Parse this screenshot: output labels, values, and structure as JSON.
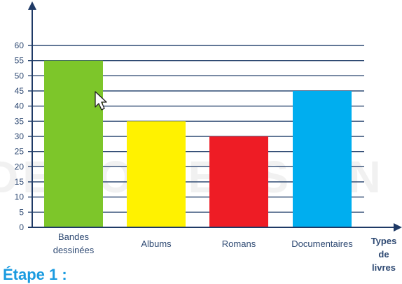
{
  "chart_data": {
    "type": "bar",
    "categories": [
      [
        "Bandes",
        "dessinées"
      ],
      [
        "Albums"
      ],
      [
        "Romans"
      ],
      [
        "Documentaires"
      ]
    ],
    "values": [
      55,
      35,
      30,
      45
    ],
    "colors": [
      "#7dc62a",
      "#fff200",
      "#ee1c25",
      "#00aeef"
    ],
    "xlabel": [
      "Types",
      "de",
      "livres"
    ],
    "ylabel": "",
    "ylim": [
      0,
      60
    ],
    "yticks": [
      0,
      5,
      10,
      15,
      20,
      25,
      30,
      35,
      40,
      45,
      50,
      55,
      60
    ],
    "grid": true,
    "grid_color": "#2f4a73"
  },
  "watermark": "DEMO VERSION",
  "step": "Étape 1 :",
  "cursor_icon": "mouse-pointer-icon"
}
